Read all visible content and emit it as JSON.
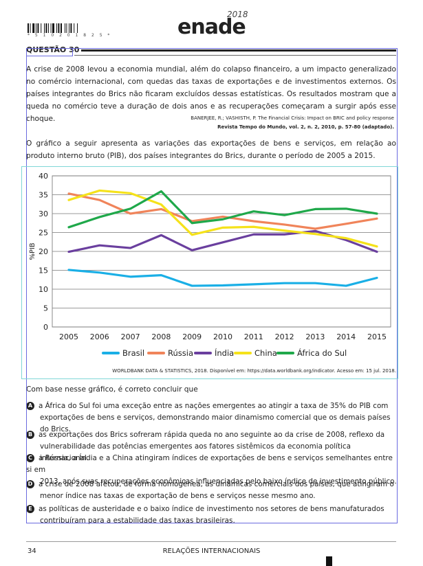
{
  "header": {
    "barcode_digits": "* 5 1 0 2 0 1 8 2 5 *",
    "logo": "enade",
    "logo_year": "2018"
  },
  "question": {
    "title": "QUESTÃO 30",
    "intro": "A crise de 2008 levou a economia mundial, além do colapso financeiro, a um impacto generalizado no comércio internacional, com quedas das taxas de exportações e de investimentos externos. Os países integrantes do Brics não ficaram excluídos dessas estatísticas. Os resultados mostram que a queda no comércio teve a duração de dois anos e as recuperações começaram a surgir após esse choque.",
    "source1_line1": "BANERJEE, R.; VASHISTH, P. The Financial Crisis: Impact on BRIC and policy response",
    "source1_line2": "Revista Tempo do Mundo, vol. 2, n. 2, 2010, p. 57-80 (adaptado).",
    "chart_intro": "O gráfico a seguir apresenta as variações das exportações de bens e serviços, em relação ao produto interno bruto (PIB), dos países integrantes do Brics, durante o período de 2005 a 2015.",
    "chart_source": "WORLDBANK DATA & STATISTICS, 2018. Disponível em: https://data.worldbank.org/indicator. Acesso em: 15 jul. 2018.",
    "prompt": "Com base nesse gráfico, é correto concluir que",
    "options": [
      {
        "letter": "A",
        "line1": "a África do Sul foi uma exceção entre as nações emergentes ao atingir a taxa de 35% do PIB com",
        "line2": "exportações de bens e serviços, demonstrando maior dinamismo comercial que os demais países do Brics."
      },
      {
        "letter": "B",
        "line1": "as exportações dos Brics sofreram rápida queda no ano seguinte ao da crise de 2008, reflexo da",
        "line2": "vulnerabilidade das potências emergentes aos fatores sistêmicos da economia política internacional."
      },
      {
        "letter": "C",
        "line1": "a Rússia, a Índia e a China atingiram índices de exportações de bens e serviços semelhantes entre si em",
        "line2": "2013, após suas recuperações econômicas influenciadas pelo baixo índice de investimento público."
      },
      {
        "letter": "D",
        "line1": "a crise de 2008 afetou, de forma homogênea, as dinâmicas comerciais dos países, que atingiram o",
        "line2": "menor índice nas taxas de exportação de bens e serviços nesse mesmo ano."
      },
      {
        "letter": "E",
        "line1": "as políticas de austeridade e o baixo índice de investimento nos setores de bens manufaturados",
        "line2": "contribuíram para a estabilidade das taxas brasileiras."
      }
    ]
  },
  "footer": {
    "page_number": "34",
    "course": "RELAÇÕES INTERNACIONAIS"
  },
  "chart_data": {
    "type": "line",
    "x": [
      2005,
      2006,
      2007,
      2008,
      2009,
      2010,
      2011,
      2012,
      2013,
      2014,
      2015
    ],
    "ylabel": "%PIB",
    "xlabel": "",
    "ylim": [
      0,
      40
    ],
    "yticks": [
      0,
      5,
      10,
      15,
      20,
      25,
      30,
      35,
      40
    ],
    "grid": "horizontal",
    "legend_position": "bottom",
    "series": [
      {
        "name": "Brasil",
        "color": "#1aafe6",
        "values": [
          15.1,
          14.4,
          13.3,
          13.7,
          10.9,
          11.0,
          11.3,
          11.6,
          11.6,
          10.9,
          13.0
        ]
      },
      {
        "name": "Rússia",
        "color": "#f0845a",
        "values": [
          35.3,
          33.6,
          30.0,
          31.2,
          28.0,
          29.2,
          28.0,
          27.1,
          26.0,
          27.3,
          28.7
        ]
      },
      {
        "name": "Índia",
        "color": "#6a3f9e",
        "values": [
          19.9,
          21.6,
          20.9,
          24.3,
          20.3,
          22.4,
          24.5,
          24.5,
          25.4,
          23.0,
          19.9
        ]
      },
      {
        "name": "China",
        "color": "#f5e21a",
        "values": [
          33.6,
          36.1,
          35.4,
          32.4,
          24.4,
          26.3,
          26.5,
          25.5,
          24.6,
          23.5,
          21.3
        ]
      },
      {
        "name": "África do Sul",
        "color": "#1fa84a",
        "values": [
          26.4,
          29.1,
          31.3,
          35.9,
          27.5,
          28.5,
          30.6,
          29.6,
          31.2,
          31.3,
          30.0
        ]
      }
    ]
  }
}
